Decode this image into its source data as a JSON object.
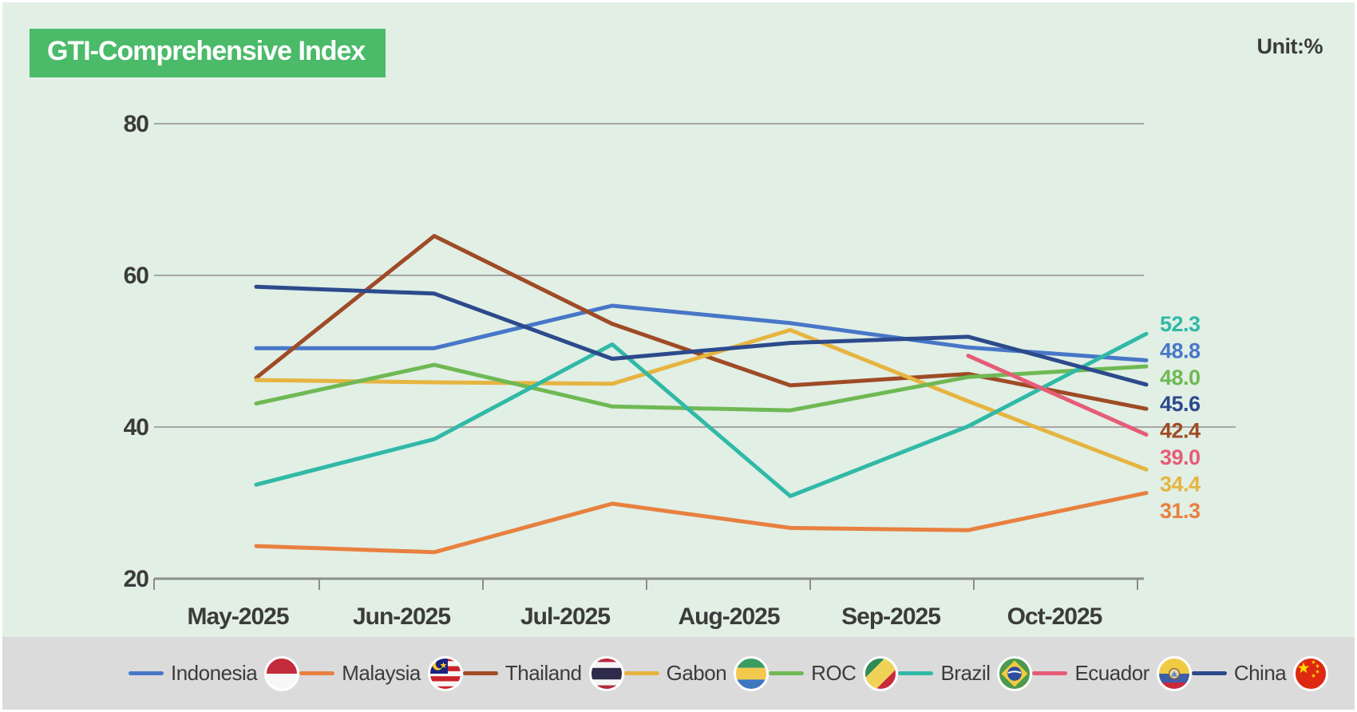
{
  "title": "GTI-Comprehensive Index",
  "unit_label": "Unit:%",
  "colors": {
    "background": "#E1EFE5",
    "legend_band": "#DBDBDB",
    "title_bg": "#4BBA69",
    "title_text": "#FFFFFF",
    "grid": "#A6A6A8",
    "axis": "#8C8C8E",
    "text": "#3B3B3B"
  },
  "chart_data": {
    "type": "line",
    "title": "GTI-Comprehensive Index",
    "unit": "%",
    "categories": [
      "May-2025",
      "Jun-2025",
      "Jul-2025",
      "Aug-2025",
      "Sep-2025",
      "Oct-2025"
    ],
    "y_ticks": [
      80,
      60,
      40,
      20
    ],
    "ylim": [
      20,
      85
    ],
    "grid": "horizontal",
    "legend_position": "bottom",
    "series": [
      {
        "name": "Indonesia",
        "flag": "indonesia-flag-icon",
        "color": "#4877C8",
        "values": [
          50.4,
          50.4,
          56.0,
          53.7,
          50.5,
          48.8
        ],
        "end_label": "48.8"
      },
      {
        "name": "Malaysia",
        "flag": "malaysia-flag-icon",
        "color": "#E8803F",
        "values": [
          24.3,
          23.5,
          29.9,
          26.7,
          26.4,
          31.3
        ],
        "end_label": "31.3"
      },
      {
        "name": "Thailand",
        "flag": "thailand-flag-icon",
        "color": "#9F4B26",
        "values": [
          46.5,
          65.2,
          53.6,
          45.5,
          47.0,
          42.4
        ],
        "end_label": "42.4"
      },
      {
        "name": "Gabon",
        "flag": "gabon-flag-icon",
        "color": "#E6B440",
        "values": [
          46.2,
          45.9,
          45.7,
          52.8,
          43.4,
          34.4
        ],
        "end_label": "34.4"
      },
      {
        "name": "ROC",
        "flag": "roc-flag-icon",
        "color": "#6FB954",
        "values": [
          43.1,
          48.2,
          42.7,
          42.2,
          46.6,
          48.0
        ],
        "end_label": "48.0"
      },
      {
        "name": "Brazil",
        "flag": "brazil-flag-icon",
        "color": "#31B9A7",
        "values": [
          32.4,
          38.4,
          50.9,
          30.9,
          40.1,
          52.3
        ],
        "end_label": "52.3"
      },
      {
        "name": "Ecuador",
        "flag": "ecuador-flag-icon",
        "color": "#E65C77",
        "values": [
          null,
          null,
          null,
          null,
          49.4,
          39.0
        ],
        "end_label": "39.0"
      },
      {
        "name": "China",
        "flag": "china-flag-icon",
        "color": "#2C4A8C",
        "values": [
          58.5,
          57.6,
          49.0,
          51.1,
          51.9,
          45.6
        ],
        "end_label": "45.6"
      }
    ]
  }
}
